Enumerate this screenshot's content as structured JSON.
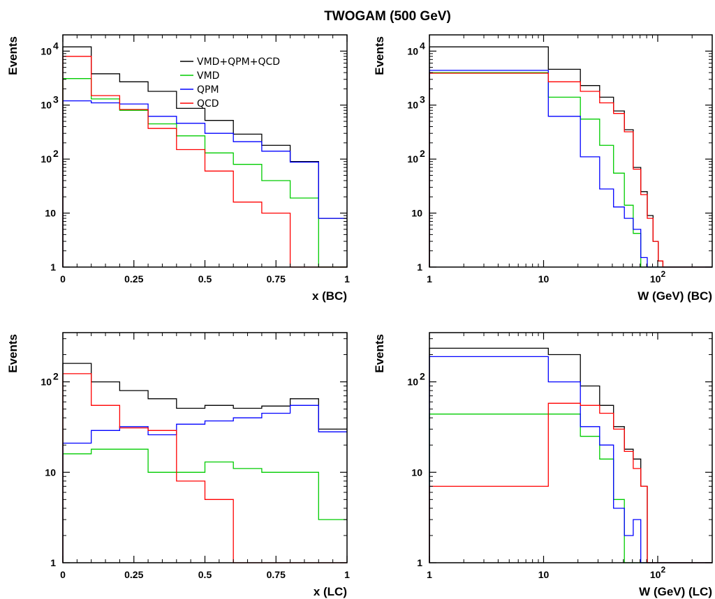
{
  "figure": {
    "title": "TWOGAM (500 GeV)"
  },
  "chart_data": [
    {
      "type": "line",
      "step": true,
      "xscale": "linear",
      "yscale": "log",
      "xlabel": "x (BC)",
      "ylabel": "Events",
      "xlim": [
        0,
        1
      ],
      "ylim": [
        1,
        20000
      ],
      "xticks": [
        {
          "value": 0,
          "label": "0"
        },
        {
          "value": 0.25,
          "label": "0.25"
        },
        {
          "value": 0.5,
          "label": "0.5"
        },
        {
          "value": 0.75,
          "label": "0.75"
        },
        {
          "value": 1,
          "label": "1"
        }
      ],
      "yticks": [
        {
          "value": 1,
          "label": "1"
        },
        {
          "value": 10,
          "label": "10"
        },
        {
          "value": 100,
          "label": "10",
          "exp": "2"
        },
        {
          "value": 1000,
          "label": "10",
          "exp": "3"
        },
        {
          "value": 10000,
          "label": "10",
          "exp": "4"
        }
      ],
      "bin_edges": [
        0,
        0.1,
        0.2,
        0.3,
        0.4,
        0.5,
        0.6,
        0.7,
        0.8,
        0.9,
        1.0
      ],
      "legend": "top-right",
      "series": [
        {
          "name": "VMD+QPM+QCD",
          "color": "#000000",
          "values": [
            12000,
            3800,
            2700,
            1800,
            870,
            520,
            290,
            180,
            90,
            8
          ]
        },
        {
          "name": "VMD",
          "color": "#00cc00",
          "values": [
            3100,
            1300,
            800,
            450,
            270,
            130,
            80,
            40,
            19,
            1
          ]
        },
        {
          "name": "QPM",
          "color": "#0000ff",
          "values": [
            1200,
            1100,
            1050,
            620,
            460,
            300,
            210,
            140,
            88,
            8
          ]
        },
        {
          "name": "QCD",
          "color": "#ff0000",
          "values": [
            8000,
            1500,
            830,
            370,
            150,
            60,
            16,
            10,
            1,
            1
          ]
        }
      ]
    },
    {
      "type": "line",
      "step": true,
      "xscale": "log",
      "yscale": "log",
      "xlabel": "W (GeV) (BC)",
      "ylabel": "Events",
      "xlim": [
        1,
        300
      ],
      "ylim": [
        1,
        20000
      ],
      "xticks": [
        {
          "value": 1,
          "label": "1"
        },
        {
          "value": 10,
          "label": "10"
        },
        {
          "value": 100,
          "label": "10",
          "exp": "2"
        }
      ],
      "yticks": [
        {
          "value": 1,
          "label": "1"
        },
        {
          "value": 10,
          "label": "10"
        },
        {
          "value": 100,
          "label": "10",
          "exp": "2"
        },
        {
          "value": 1000,
          "label": "10",
          "exp": "3"
        },
        {
          "value": 10000,
          "label": "10",
          "exp": "4"
        }
      ],
      "bin_edges": [
        1,
        11,
        21,
        31,
        41,
        51,
        61,
        71,
        81,
        91,
        101,
        111,
        121,
        300
      ],
      "series": [
        {
          "name": "VMD+QPM+QCD",
          "color": "#000000",
          "values": [
            12000,
            4600,
            2300,
            1400,
            780,
            350,
            70,
            25,
            9,
            3,
            1.3,
            1,
            1
          ]
        },
        {
          "name": "VMD",
          "color": "#00cc00",
          "values": [
            4000,
            1400,
            550,
            180,
            55,
            14,
            4.2,
            1,
            1,
            1,
            1,
            1,
            1
          ]
        },
        {
          "name": "QPM",
          "color": "#0000ff",
          "values": [
            4400,
            620,
            110,
            28,
            13,
            8,
            5,
            1.5,
            1,
            1,
            1,
            1,
            1
          ]
        },
        {
          "name": "QCD",
          "color": "#ff0000",
          "values": [
            3900,
            2700,
            1800,
            1100,
            700,
            320,
            65,
            22,
            8,
            3,
            1.3,
            1,
            1
          ]
        }
      ]
    },
    {
      "type": "line",
      "step": true,
      "xscale": "linear",
      "yscale": "log",
      "xlabel": "x (LC)",
      "ylabel": "Events",
      "xlim": [
        0,
        1
      ],
      "ylim": [
        1,
        350
      ],
      "xticks": [
        {
          "value": 0,
          "label": "0"
        },
        {
          "value": 0.25,
          "label": "0.25"
        },
        {
          "value": 0.5,
          "label": "0.5"
        },
        {
          "value": 0.75,
          "label": "0.75"
        },
        {
          "value": 1,
          "label": "1"
        }
      ],
      "yticks": [
        {
          "value": 1,
          "label": "1"
        },
        {
          "value": 10,
          "label": "10"
        },
        {
          "value": 100,
          "label": "10",
          "exp": "2"
        }
      ],
      "bin_edges": [
        0,
        0.1,
        0.2,
        0.3,
        0.4,
        0.5,
        0.6,
        0.7,
        0.8,
        0.9,
        1.0
      ],
      "series": [
        {
          "name": "VMD+QPM+QCD",
          "color": "#000000",
          "values": [
            160,
            100,
            80,
            65,
            51,
            55,
            51,
            54,
            65,
            30
          ]
        },
        {
          "name": "VMD",
          "color": "#00cc00",
          "values": [
            16,
            18,
            18,
            10,
            10,
            13,
            11,
            10,
            10,
            3
          ]
        },
        {
          "name": "QPM",
          "color": "#0000ff",
          "values": [
            21,
            29,
            32,
            26,
            34,
            37,
            40,
            45,
            55,
            28
          ]
        },
        {
          "name": "QCD",
          "color": "#ff0000",
          "values": [
            123,
            55,
            31,
            29,
            8,
            5,
            1,
            1,
            1,
            1
          ]
        }
      ]
    },
    {
      "type": "line",
      "step": true,
      "xscale": "log",
      "yscale": "log",
      "xlabel": "W (GeV) (LC)",
      "ylabel": "Events",
      "xlim": [
        1,
        300
      ],
      "ylim": [
        1,
        350
      ],
      "xticks": [
        {
          "value": 1,
          "label": "1"
        },
        {
          "value": 10,
          "label": "10"
        },
        {
          "value": 100,
          "label": "10",
          "exp": "2"
        }
      ],
      "yticks": [
        {
          "value": 1,
          "label": "1"
        },
        {
          "value": 10,
          "label": "10"
        },
        {
          "value": 100,
          "label": "10",
          "exp": "2"
        }
      ],
      "bin_edges": [
        1,
        11,
        21,
        31,
        41,
        51,
        61,
        71,
        81,
        91,
        300
      ],
      "series": [
        {
          "name": "VMD+QPM+QCD",
          "color": "#000000",
          "values": [
            235,
            200,
            90,
            55,
            32,
            18,
            14,
            7,
            1,
            1
          ]
        },
        {
          "name": "VMD",
          "color": "#00cc00",
          "values": [
            44,
            44,
            25,
            14,
            5,
            1,
            1,
            1,
            1,
            1
          ]
        },
        {
          "name": "QPM",
          "color": "#0000ff",
          "values": [
            190,
            100,
            32,
            20,
            4,
            2,
            3,
            1,
            1,
            1
          ]
        },
        {
          "name": "QCD",
          "color": "#ff0000",
          "values": [
            7,
            58,
            55,
            45,
            30,
            17,
            11,
            7,
            1,
            1
          ]
        }
      ]
    }
  ]
}
